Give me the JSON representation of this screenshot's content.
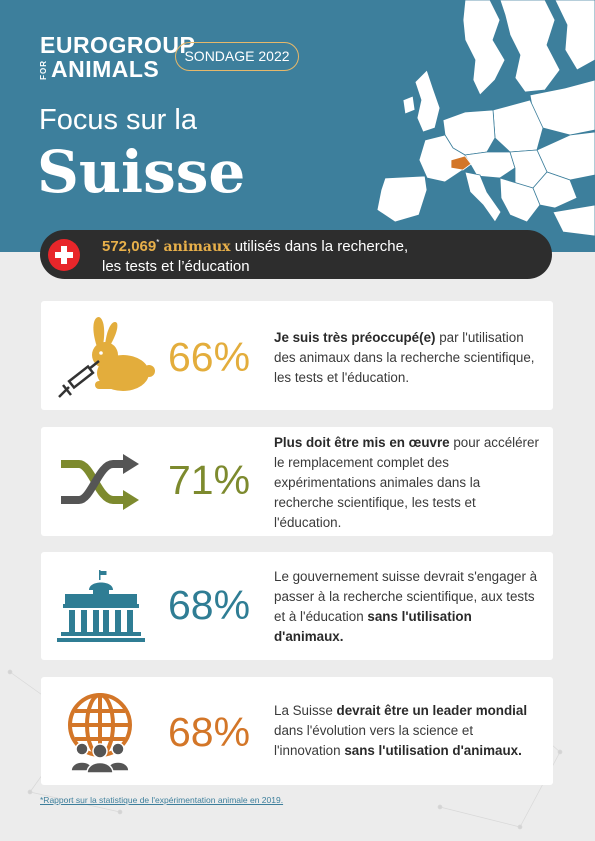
{
  "header": {
    "logo_line1": "EUROGROUP",
    "logo_for": "FOR",
    "logo_line2": "ANIMALS",
    "badge": "SONDAGE 2022",
    "focus": "Focus sur la",
    "country": "Suisse"
  },
  "banner": {
    "number": "572,069",
    "footnote_mark": "*",
    "keyword": "animaux",
    "text_line1": "utilisés dans la recherche,",
    "text_line2": "les tests et l’éducation"
  },
  "cards": [
    {
      "icon": "rabbit-syringe-icon",
      "percent": "66%",
      "color": "#e3ad3c",
      "bold_a": "Je suis très préoccupé(e)",
      "text_a": " par l'utilisation des animaux dans la recherche scientifique, les tests et l'éducation."
    },
    {
      "icon": "shuffle-arrows-icon",
      "percent": "71%",
      "color": "#7d8a2e",
      "bold_a": "Plus doit être mis en œuvre",
      "text_a": " pour accélérer le remplacement complet des expérimentations animales dans la recherche scientifique, les tests et l'éducation."
    },
    {
      "icon": "parliament-building-icon",
      "percent": "68%",
      "color": "#2f7d94",
      "text_a": "Le gouvernement suisse devrait s'engager à passer à la recherche scientifique, aux tests et à l'éducation ",
      "bold_a": "sans l'utilisation d'animaux."
    },
    {
      "icon": "globe-people-icon",
      "percent": "68%",
      "color": "#d37628",
      "text_a": "La Suisse ",
      "bold_a": "devrait être un leader mondial",
      "text_b": " dans l'évolution vers la science et l'innovation ",
      "bold_b": "sans l'utilisation d'animaux."
    }
  ],
  "footnote": "*Rapport sur la statistique de l'expérimentation animale en 2019."
}
